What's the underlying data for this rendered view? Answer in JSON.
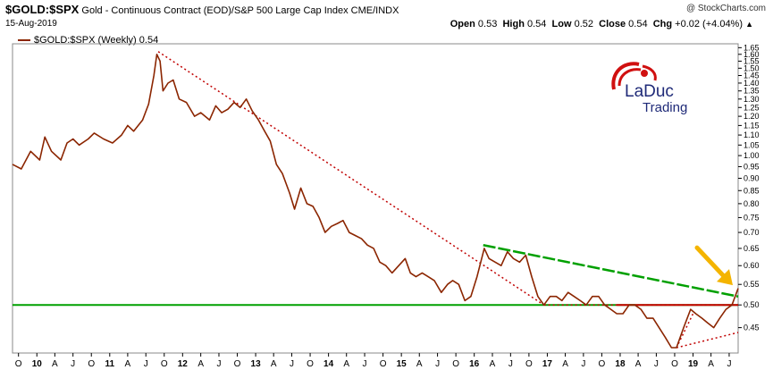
{
  "header": {
    "symbol": "$GOLD:$SPX",
    "description": "Gold - Continuous Contract (EOD)/S&P 500 Large Cap Index",
    "exchange": "CME/INDX",
    "date": "15-Aug-2019",
    "brand": "@ StockCharts.com",
    "open_label": "Open",
    "open_value": "0.53",
    "high_label": "High",
    "high_value": "0.54",
    "low_label": "Low",
    "low_value": "0.52",
    "close_label": "Close",
    "close_value": "0.54",
    "chg_label": "Chg",
    "chg_value": "+0.02 (+4.04%)",
    "trend_symbol": "▲"
  },
  "legend": {
    "label": "$GOLD:$SPX (Weekly) 0.54"
  },
  "logo": {
    "line1": "LaDuc",
    "line2": "Trading"
  },
  "colors": {
    "price": "#8B2500",
    "green_line": "#00A000",
    "red_line": "#D00000",
    "dotted": "#C00000",
    "arrow": "#F4B400",
    "axis": "#000000"
  },
  "chart_data": {
    "type": "line",
    "title": "$GOLD:$SPX (Weekly) 0.54",
    "xlabel": "",
    "ylabel": "",
    "ylim": [
      0.4,
      1.68
    ],
    "y_scale": "log",
    "yticks": [
      "1.65",
      "1.60",
      "1.55",
      "1.50",
      "1.45",
      "1.40",
      "1.35",
      "1.30",
      "1.25",
      "1.20",
      "1.15",
      "1.10",
      "1.05",
      "1.00",
      "0.95",
      "0.90",
      "0.85",
      "0.80",
      "0.75",
      "0.70",
      "0.65",
      "0.60",
      "0.55",
      "0.50",
      "0.45"
    ],
    "xlim": [
      "2009-09",
      "2019-08"
    ],
    "xticks": [
      {
        "label": "O",
        "d": "2009-10"
      },
      {
        "label": "10",
        "d": "2010-01"
      },
      {
        "label": "A",
        "d": "2010-04"
      },
      {
        "label": "J",
        "d": "2010-07"
      },
      {
        "label": "O",
        "d": "2010-10"
      },
      {
        "label": "11",
        "d": "2011-01"
      },
      {
        "label": "A",
        "d": "2011-04"
      },
      {
        "label": "J",
        "d": "2011-07"
      },
      {
        "label": "O",
        "d": "2011-10"
      },
      {
        "label": "12",
        "d": "2012-01"
      },
      {
        "label": "A",
        "d": "2012-04"
      },
      {
        "label": "J",
        "d": "2012-07"
      },
      {
        "label": "O",
        "d": "2012-10"
      },
      {
        "label": "13",
        "d": "2013-01"
      },
      {
        "label": "A",
        "d": "2013-04"
      },
      {
        "label": "J",
        "d": "2013-07"
      },
      {
        "label": "O",
        "d": "2013-10"
      },
      {
        "label": "14",
        "d": "2014-01"
      },
      {
        "label": "A",
        "d": "2014-04"
      },
      {
        "label": "J",
        "d": "2014-07"
      },
      {
        "label": "O",
        "d": "2014-10"
      },
      {
        "label": "15",
        "d": "2015-01"
      },
      {
        "label": "A",
        "d": "2015-04"
      },
      {
        "label": "J",
        "d": "2015-07"
      },
      {
        "label": "O",
        "d": "2015-10"
      },
      {
        "label": "16",
        "d": "2016-01"
      },
      {
        "label": "A",
        "d": "2016-04"
      },
      {
        "label": "J",
        "d": "2016-07"
      },
      {
        "label": "O",
        "d": "2016-10"
      },
      {
        "label": "17",
        "d": "2017-01"
      },
      {
        "label": "A",
        "d": "2017-04"
      },
      {
        "label": "J",
        "d": "2017-07"
      },
      {
        "label": "O",
        "d": "2017-10"
      },
      {
        "label": "18",
        "d": "2018-01"
      },
      {
        "label": "A",
        "d": "2018-04"
      },
      {
        "label": "J",
        "d": "2018-07"
      },
      {
        "label": "O",
        "d": "2018-10"
      },
      {
        "label": "19",
        "d": "2019-01"
      },
      {
        "label": "A",
        "d": "2019-04"
      },
      {
        "label": "J",
        "d": "2019-07"
      }
    ],
    "series": [
      {
        "name": "$GOLD:$SPX (Weekly)",
        "points": [
          [
            "2009-09-01",
            0.96
          ],
          [
            "2009-10-15",
            0.94
          ],
          [
            "2009-12-01",
            1.02
          ],
          [
            "2010-01-15",
            0.98
          ],
          [
            "2010-02-10",
            1.09
          ],
          [
            "2010-03-15",
            1.02
          ],
          [
            "2010-05-01",
            0.98
          ],
          [
            "2010-06-01",
            1.06
          ],
          [
            "2010-07-01",
            1.08
          ],
          [
            "2010-08-01",
            1.05
          ],
          [
            "2010-09-15",
            1.08
          ],
          [
            "2010-10-15",
            1.11
          ],
          [
            "2010-12-01",
            1.08
          ],
          [
            "2011-01-15",
            1.06
          ],
          [
            "2011-03-01",
            1.1
          ],
          [
            "2011-04-01",
            1.15
          ],
          [
            "2011-05-01",
            1.12
          ],
          [
            "2011-06-15",
            1.18
          ],
          [
            "2011-07-15",
            1.27
          ],
          [
            "2011-08-10",
            1.45
          ],
          [
            "2011-08-25",
            1.6
          ],
          [
            "2011-09-10",
            1.55
          ],
          [
            "2011-09-25",
            1.35
          ],
          [
            "2011-10-20",
            1.4
          ],
          [
            "2011-11-15",
            1.42
          ],
          [
            "2011-12-15",
            1.3
          ],
          [
            "2012-01-20",
            1.28
          ],
          [
            "2012-03-01",
            1.2
          ],
          [
            "2012-04-01",
            1.22
          ],
          [
            "2012-05-15",
            1.18
          ],
          [
            "2012-06-15",
            1.26
          ],
          [
            "2012-07-15",
            1.22
          ],
          [
            "2012-08-15",
            1.24
          ],
          [
            "2012-09-15",
            1.28
          ],
          [
            "2012-10-15",
            1.25
          ],
          [
            "2012-11-15",
            1.3
          ],
          [
            "2012-12-15",
            1.23
          ],
          [
            "2013-01-15",
            1.18
          ],
          [
            "2013-02-15",
            1.12
          ],
          [
            "2013-03-15",
            1.07
          ],
          [
            "2013-04-15",
            0.96
          ],
          [
            "2013-05-15",
            0.92
          ],
          [
            "2013-06-20",
            0.84
          ],
          [
            "2013-07-15",
            0.78
          ],
          [
            "2013-08-15",
            0.86
          ],
          [
            "2013-09-15",
            0.8
          ],
          [
            "2013-10-15",
            0.79
          ],
          [
            "2013-11-15",
            0.75
          ],
          [
            "2013-12-15",
            0.7
          ],
          [
            "2014-01-15",
            0.72
          ],
          [
            "2014-02-15",
            0.73
          ],
          [
            "2014-03-15",
            0.74
          ],
          [
            "2014-04-15",
            0.7
          ],
          [
            "2014-05-15",
            0.69
          ],
          [
            "2014-06-15",
            0.68
          ],
          [
            "2014-07-15",
            0.66
          ],
          [
            "2014-08-15",
            0.65
          ],
          [
            "2014-09-15",
            0.61
          ],
          [
            "2014-10-15",
            0.6
          ],
          [
            "2014-11-15",
            0.58
          ],
          [
            "2015-01-20",
            0.62
          ],
          [
            "2015-02-15",
            0.58
          ],
          [
            "2015-03-15",
            0.57
          ],
          [
            "2015-04-15",
            0.58
          ],
          [
            "2015-05-15",
            0.57
          ],
          [
            "2015-06-15",
            0.56
          ],
          [
            "2015-07-20",
            0.53
          ],
          [
            "2015-08-20",
            0.55
          ],
          [
            "2015-09-15",
            0.56
          ],
          [
            "2015-10-15",
            0.55
          ],
          [
            "2015-11-15",
            0.51
          ],
          [
            "2015-12-15",
            0.52
          ],
          [
            "2016-01-15",
            0.57
          ],
          [
            "2016-02-20",
            0.65
          ],
          [
            "2016-03-15",
            0.62
          ],
          [
            "2016-04-15",
            0.61
          ],
          [
            "2016-05-15",
            0.6
          ],
          [
            "2016-06-15",
            0.64
          ],
          [
            "2016-07-15",
            0.62
          ],
          [
            "2016-08-15",
            0.61
          ],
          [
            "2016-09-15",
            0.63
          ],
          [
            "2016-10-15",
            0.57
          ],
          [
            "2016-11-15",
            0.52
          ],
          [
            "2016-12-15",
            0.5
          ],
          [
            "2017-01-15",
            0.52
          ],
          [
            "2017-02-15",
            0.52
          ],
          [
            "2017-03-15",
            0.51
          ],
          [
            "2017-04-15",
            0.53
          ],
          [
            "2017-05-15",
            0.52
          ],
          [
            "2017-06-15",
            0.51
          ],
          [
            "2017-07-15",
            0.5
          ],
          [
            "2017-08-15",
            0.52
          ],
          [
            "2017-09-15",
            0.52
          ],
          [
            "2017-10-15",
            0.5
          ],
          [
            "2017-11-15",
            0.49
          ],
          [
            "2017-12-15",
            0.48
          ],
          [
            "2018-01-15",
            0.48
          ],
          [
            "2018-02-15",
            0.5
          ],
          [
            "2018-03-15",
            0.5
          ],
          [
            "2018-04-15",
            0.49
          ],
          [
            "2018-05-15",
            0.47
          ],
          [
            "2018-06-15",
            0.47
          ],
          [
            "2018-07-15",
            0.45
          ],
          [
            "2018-08-15",
            0.43
          ],
          [
            "2018-09-15",
            0.41
          ],
          [
            "2018-10-10",
            0.41
          ],
          [
            "2018-11-15",
            0.45
          ],
          [
            "2018-12-20",
            0.49
          ],
          [
            "2019-01-15",
            0.48
          ],
          [
            "2019-02-15",
            0.47
          ],
          [
            "2019-03-15",
            0.46
          ],
          [
            "2019-04-15",
            0.45
          ],
          [
            "2019-05-15",
            0.47
          ],
          [
            "2019-06-15",
            0.49
          ],
          [
            "2019-07-15",
            0.5
          ],
          [
            "2019-08-15",
            0.54
          ]
        ]
      }
    ],
    "annotations": [
      {
        "type": "horizontal_line",
        "color": "green",
        "y": 0.5,
        "from": "2009-09-01",
        "to": "2019-08-15"
      },
      {
        "type": "trendline",
        "color": "green",
        "from": [
          "2016-02-15",
          0.66
        ],
        "to": [
          "2019-08-15",
          0.52
        ]
      },
      {
        "type": "horizontal_line",
        "color": "red",
        "y": 0.5,
        "from": "2017-12-15",
        "to": "2019-08-15"
      },
      {
        "type": "dotted_trendline",
        "color": "red",
        "from": [
          "2011-09-01",
          1.62
        ],
        "to": [
          "2016-12-15",
          0.5
        ]
      },
      {
        "type": "dotted_trendline",
        "color": "red",
        "from": [
          "2016-12-15",
          0.5
        ],
        "to": [
          "2019-08-15",
          0.5
        ]
      },
      {
        "type": "dotted_trendline",
        "color": "red",
        "from": [
          "2018-10-10",
          0.41
        ],
        "to": [
          "2019-08-15",
          0.44
        ]
      },
      {
        "type": "dotted_trendline",
        "color": "red",
        "from": [
          "2018-10-10",
          0.41
        ],
        "to": [
          "2019-01-01",
          0.48
        ]
      },
      {
        "type": "arrow",
        "color": "orange",
        "points_to": [
          "2019-08-15",
          0.53
        ]
      }
    ]
  }
}
